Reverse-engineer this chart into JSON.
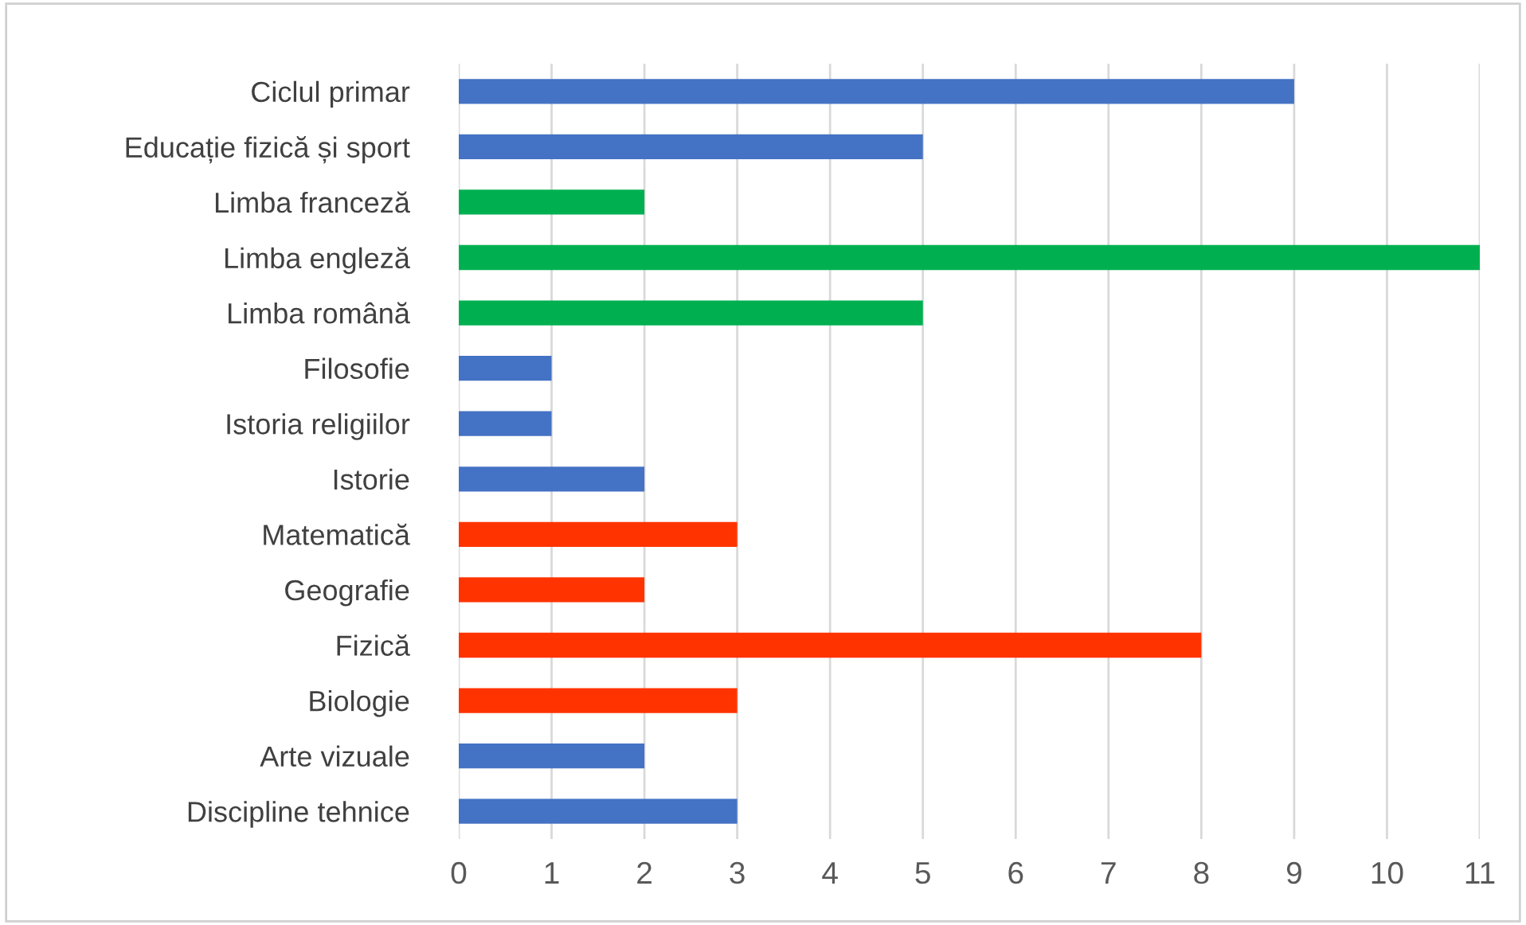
{
  "chart_data": {
    "type": "bar",
    "orientation": "horizontal",
    "categories": [
      "Ciclul primar",
      "Educație fizică și sport",
      "Limba franceză",
      "Limba engleză",
      "Limba română",
      "Filosofie",
      "Istoria religiilor",
      "Istorie",
      "Matematică",
      "Geografie",
      "Fizică",
      "Biologie",
      "Arte vizuale",
      "Discipline tehnice"
    ],
    "values": [
      9,
      5,
      2,
      11,
      5,
      1,
      1,
      2,
      3,
      2,
      8,
      3,
      2,
      3
    ],
    "colors": [
      "#4472c4",
      "#4472c4",
      "#00b050",
      "#00b050",
      "#00b050",
      "#4472c4",
      "#4472c4",
      "#4472c4",
      "#ff3300",
      "#ff3300",
      "#ff3300",
      "#ff3300",
      "#4472c4",
      "#4472c4"
    ],
    "xlim": [
      0,
      11
    ],
    "xticks": [
      0,
      1,
      2,
      3,
      4,
      5,
      6,
      7,
      8,
      9,
      10,
      11
    ],
    "grid": "x"
  }
}
